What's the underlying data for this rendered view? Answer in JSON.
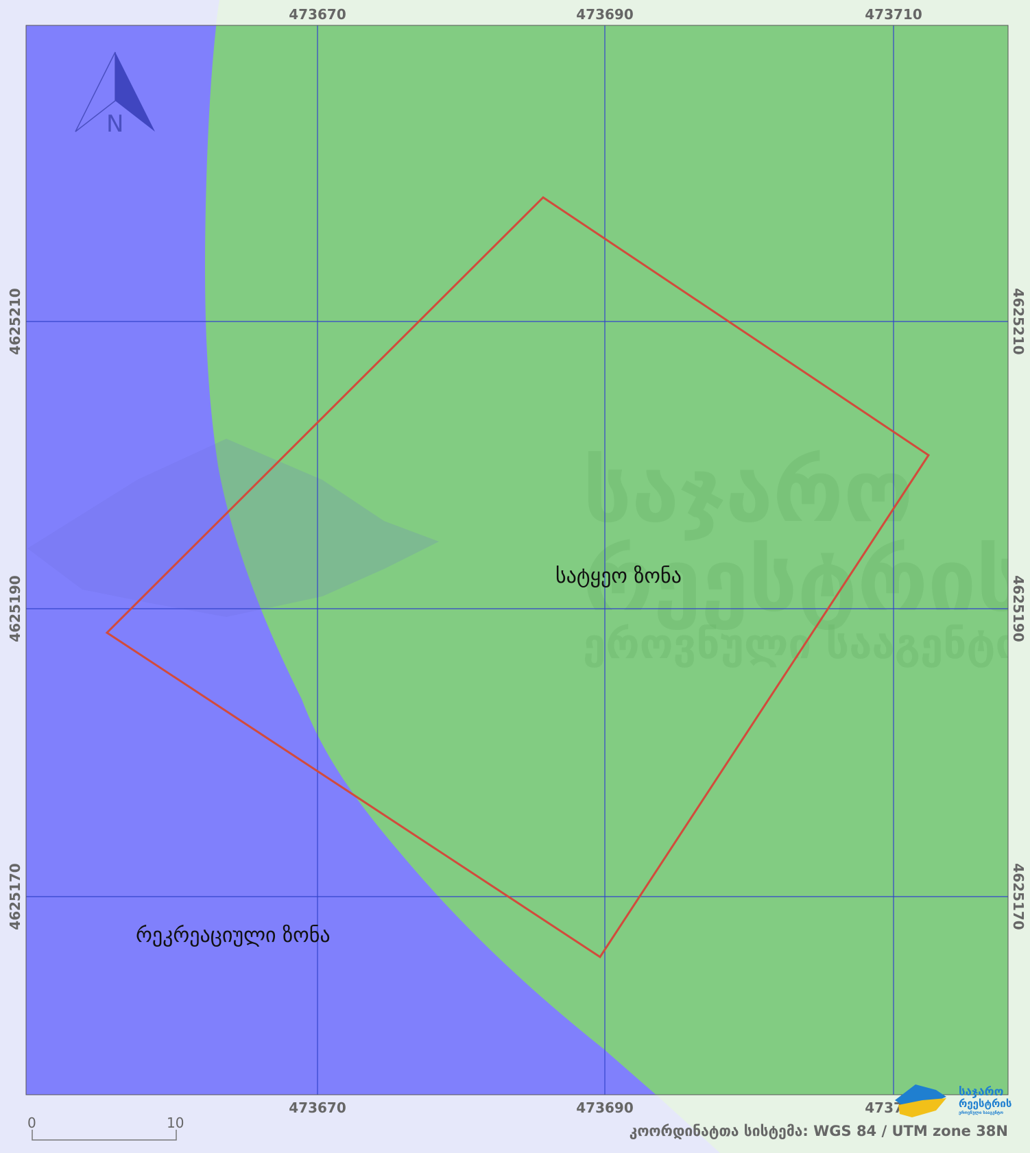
{
  "map": {
    "grid_x_labels": [
      "473670",
      "473690",
      "473710"
    ],
    "grid_y_labels": [
      "4625210",
      "4625190",
      "4625170"
    ],
    "zones": [
      {
        "name": "სატყეო ზონა",
        "color": "#82cc82"
      },
      {
        "name": "რეკრეაციული ზონა",
        "color": "#8080fc"
      }
    ],
    "parcel_outline_color": "#d24b3c",
    "grid_color": "#3344cc",
    "north_arrow_label": "N",
    "scale_bar": {
      "start": "0",
      "end": "10"
    },
    "crs": "კოორდინატთა სისტემა: WGS 84 / UTM zone 38N",
    "watermark": [
      "საჯარო",
      "რეესტრის",
      "ეროვნული სააგენტო"
    ],
    "logo": [
      "საჯარო",
      "რეესტრის",
      "ეროვნული სააგენტო"
    ]
  }
}
